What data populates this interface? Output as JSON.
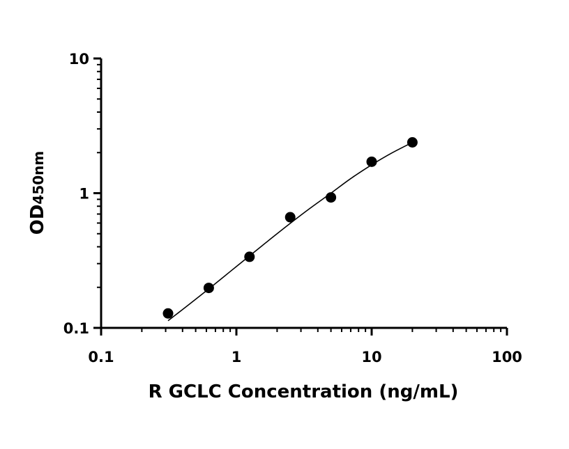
{
  "chart_data": {
    "type": "scatter",
    "title": "",
    "xlabel": "R GCLC Concentration (ng/mL)",
    "ylabel": {
      "main": "OD",
      "subscript": "450nm"
    },
    "x_scale": "log",
    "y_scale": "log",
    "xlim": [
      0.1,
      100
    ],
    "ylim": [
      0.1,
      10
    ],
    "x_ticks": [
      0.1,
      1,
      10,
      100
    ],
    "x_tick_labels": [
      "0.1",
      "1",
      "10",
      "100"
    ],
    "y_ticks": [
      0.1,
      1,
      10
    ],
    "y_tick_labels": [
      "0.1",
      "1",
      "10"
    ],
    "grid": false,
    "legend": "none",
    "series": [
      {
        "type": "scatter",
        "x": [
          0.3125,
          0.625,
          1.25,
          2.5,
          5,
          10,
          20
        ],
        "y": [
          0.128,
          0.198,
          0.337,
          0.663,
          0.93,
          1.712,
          2.384
        ]
      },
      {
        "type": "fitted-curve",
        "x": [
          0.3125,
          0.45,
          0.65,
          0.9,
          1.25,
          1.8,
          2.5,
          3.5,
          5,
          7,
          10,
          14,
          20
        ],
        "y": [
          0.113,
          0.15,
          0.201,
          0.262,
          0.342,
          0.46,
          0.597,
          0.772,
          1.0,
          1.283,
          1.623,
          1.98,
          2.38
        ]
      }
    ],
    "colors": {
      "points": "#000000",
      "curve": "#000000",
      "axes": "#000000"
    }
  }
}
